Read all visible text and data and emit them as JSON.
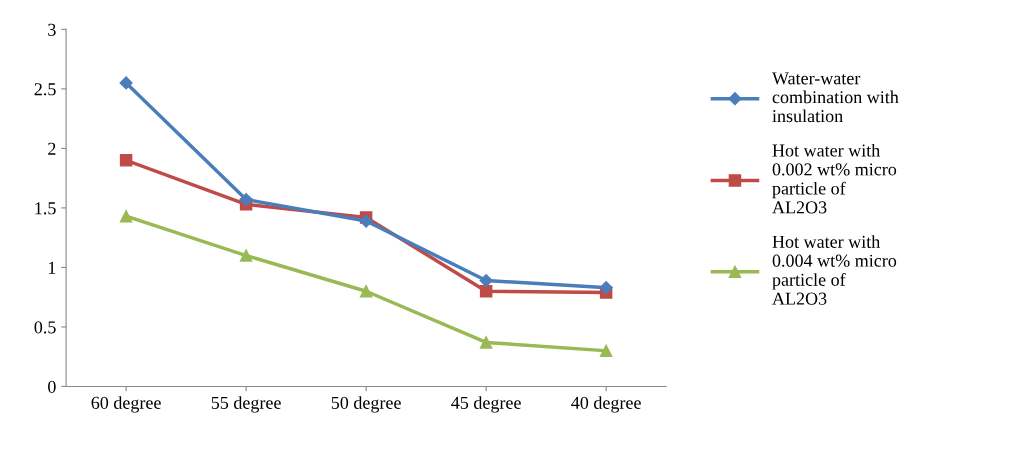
{
  "chart_data": {
    "type": "line",
    "categories": [
      "60 degree",
      "55 degree",
      "50 degree",
      "45 degree",
      "40 degree"
    ],
    "series": [
      {
        "name": "Water-water\ncombination with\ninsulation",
        "color": "#4a7ebb",
        "marker": "diamond",
        "values": [
          2.55,
          1.57,
          1.39,
          0.89,
          0.83
        ]
      },
      {
        "name": "Hot water with\n0.002 wt% micro\nparticle of\nAL2O3",
        "color": "#be4b48",
        "marker": "square",
        "values": [
          1.9,
          1.53,
          1.42,
          0.8,
          0.79
        ]
      },
      {
        "name": "Hot water with\n0.004 wt% micro\nparticle of\nAL2O3",
        "color": "#98b954",
        "marker": "triangle",
        "values": [
          1.43,
          1.1,
          0.8,
          0.37,
          0.3
        ]
      }
    ],
    "ylim": [
      0,
      3
    ],
    "yticks": [
      0,
      0.5,
      1,
      1.5,
      2,
      2.5,
      3
    ],
    "grid": false,
    "legend": "right",
    "line_style": "solid"
  }
}
